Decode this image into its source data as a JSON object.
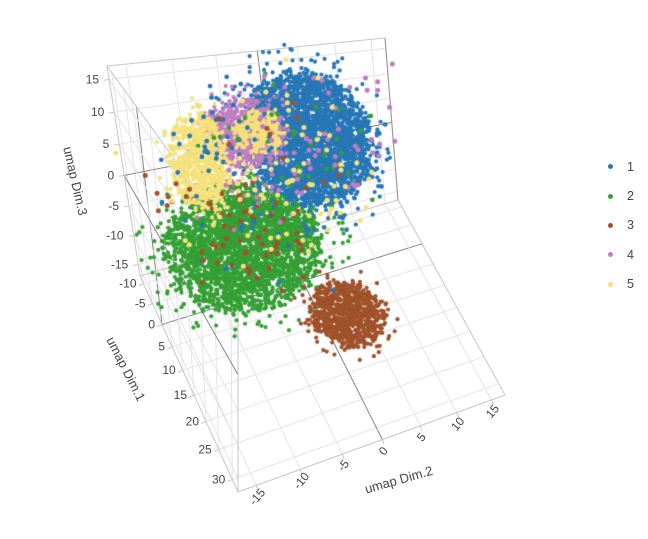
{
  "chart_data": {
    "type": "scatter3d",
    "title": "",
    "axes": {
      "x": {
        "title": "umap Dim.1",
        "range": [
          -12,
          32
        ],
        "ticks": [
          -10,
          -5,
          0,
          5,
          10,
          15,
          20,
          25,
          30
        ]
      },
      "y": {
        "title": "umap Dim.2",
        "range": [
          -17,
          17
        ],
        "ticks": [
          -15,
          -10,
          -5,
          0,
          5,
          10,
          15
        ]
      },
      "z": {
        "title": "umap Dim.3",
        "range": [
          -17,
          17
        ],
        "ticks": [
          -15,
          -10,
          -5,
          0,
          5,
          10,
          15
        ]
      }
    },
    "style": {
      "background": "#ffffff",
      "grid_color": "#e4e4e4",
      "zeroline_color": "#848484",
      "axis_edge_color": "#c6c6c6",
      "dark_edge_color": "#9a9a9a",
      "tick_label_color": "#444444",
      "axis_title_color": "#444444"
    },
    "legend": {
      "position": "right",
      "marker": "dot",
      "items": [
        {
          "label": "1",
          "color": "#2877B6"
        },
        {
          "label": "2",
          "color": "#35A035"
        },
        {
          "label": "3",
          "color": "#A0522B"
        },
        {
          "label": "4",
          "color": "#C07EC0"
        },
        {
          "label": "5",
          "color": "#F5E17B"
        }
      ]
    },
    "clusters": [
      {
        "label": "1",
        "color": "#2877B6",
        "components": [
          {
            "center": [
              3.4,
              1.7,
              10.9
            ],
            "sigma": [
              4.5,
              3.6,
              4.5
            ],
            "n": 3200,
            "r": 2.1,
            "layer": "base"
          },
          {
            "center": [
              2,
              -3,
              2
            ],
            "sigma": [
              5,
              7,
              6
            ],
            "n": 70,
            "r": 2.4,
            "layer": "top"
          },
          {
            "center": [
              -2,
              -5,
              9
            ],
            "sigma": [
              3,
              4,
              4
            ],
            "n": 40,
            "r": 2.4,
            "layer": "top"
          }
        ]
      },
      {
        "label": "2",
        "color": "#35A035",
        "components": [
          {
            "center": [
              5.6,
              -7.8,
              -3.4
            ],
            "sigma": [
              4.8,
              4.2,
              3.6
            ],
            "n": 3000,
            "r": 2.1,
            "layer": "base"
          },
          {
            "center": [
              3,
              1,
              9
            ],
            "sigma": [
              4,
              6,
              5
            ],
            "n": 35,
            "r": 2.4,
            "layer": "top"
          }
        ]
      },
      {
        "label": "3",
        "color": "#A0522B",
        "components": [
          {
            "center": [
              15.3,
              1.7,
              -11
            ],
            "sigma": [
              3.1,
              2.15,
              0.85
            ],
            "n": 820,
            "r": 2.1,
            "layer": "base"
          },
          {
            "center": [
              5.6,
              -6.5,
              -1.5
            ],
            "sigma": [
              3.5,
              3.0,
              3.5
            ],
            "n": 55,
            "r": 2.5,
            "layer": "top"
          },
          {
            "center": [
              -9,
              -13,
              -3
            ],
            "sigma": [
              1.2,
              1.2,
              1.5
            ],
            "n": 10,
            "r": 2.5,
            "layer": "top"
          },
          {
            "center": [
              1,
              -1,
              8
            ],
            "sigma": [
              4,
              5,
              4
            ],
            "n": 12,
            "r": 2.5,
            "layer": "top"
          }
        ]
      },
      {
        "label": "4",
        "color": "#C07EC0",
        "components": [
          {
            "center": [
              -2.3,
              -4.8,
              9.5
            ],
            "sigma": [
              2.0,
              2.4,
              2.4
            ],
            "n": 800,
            "r": 2.1,
            "layer": "base"
          },
          {
            "center": [
              3.5,
              2,
              11
            ],
            "sigma": [
              4,
              6,
              5
            ],
            "n": 45,
            "r": 2.5,
            "layer": "top"
          },
          {
            "center": [
              2,
              -5,
              3
            ],
            "sigma": [
              3,
              4,
              3
            ],
            "n": 25,
            "r": 2.4,
            "layer": "top"
          }
        ]
      },
      {
        "label": "5",
        "color": "#F5E17B",
        "components": [
          {
            "center": [
              -6.3,
              -9.5,
              3.4
            ],
            "sigma": [
              1.4,
              1.6,
              3.8
            ],
            "n": 750,
            "r": 2.1,
            "layer": "base"
          },
          {
            "center": [
              -2,
              -3.2,
              9.6
            ],
            "sigma": [
              1.0,
              1.4,
              1.6
            ],
            "n": 220,
            "r": 2.1,
            "layer": "base"
          },
          {
            "center": [
              2,
              -3,
              4
            ],
            "sigma": [
              5,
              6,
              6
            ],
            "n": 90,
            "r": 2.5,
            "layer": "top"
          }
        ]
      }
    ]
  }
}
